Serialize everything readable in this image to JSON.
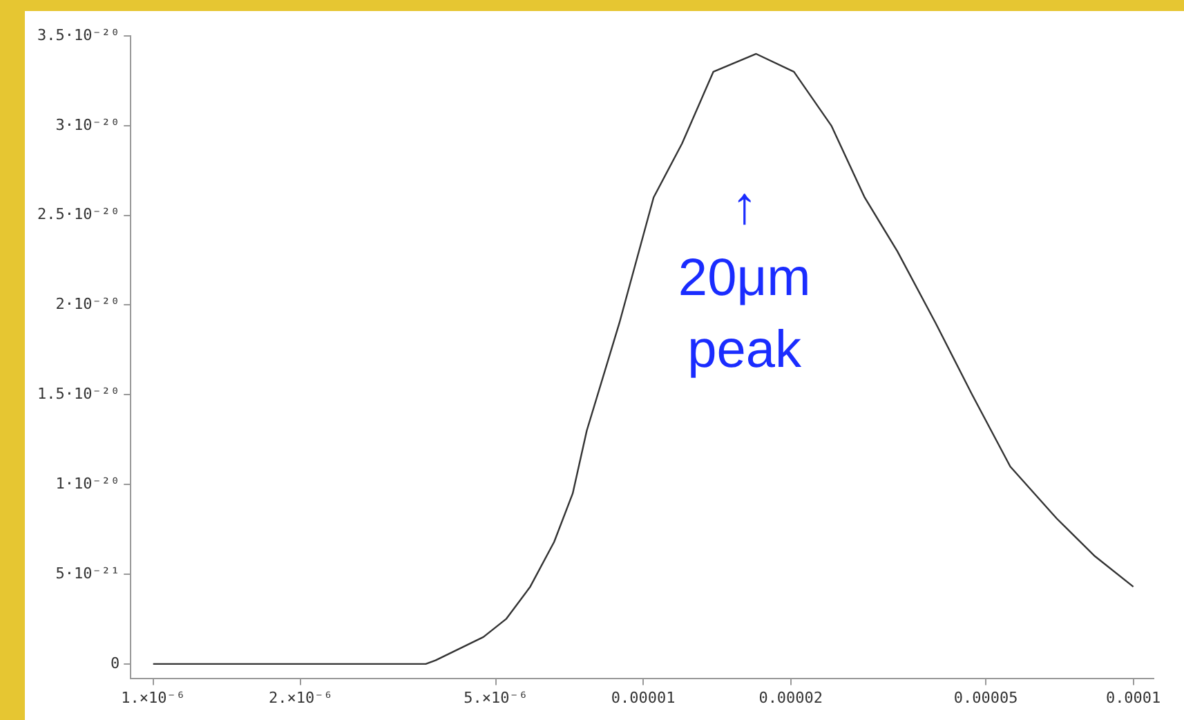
{
  "chart_data": {
    "type": "line",
    "log": "x",
    "grid": false,
    "marker": "none",
    "line_style": "solid",
    "x": [
      1e-06,
      2e-06,
      3e-06,
      3.6e-06,
      3.77e-06,
      4.72e-06,
      5.25e-06,
      5.88e-06,
      6.58e-06,
      7.18e-06,
      7.67e-06,
      8.94e-06,
      1.05e-05,
      1.2e-05,
      1.39e-05,
      1.7e-05,
      2.03e-05,
      2.42e-05,
      2.83e-05,
      3.3e-05,
      3.95e-05,
      4.69e-05,
      5.61e-05,
      6.98e-05,
      8.35e-05,
      0.0001
    ],
    "series": [
      {
        "color": "#333333",
        "values": [
          0,
          0,
          0,
          0,
          2e-22,
          1.5e-21,
          2.5e-21,
          4.3e-21,
          6.8e-21,
          9.5e-21,
          1.3e-20,
          1.9e-20,
          2.6e-20,
          2.9e-20,
          3.3e-20,
          3.4e-20,
          3.3e-20,
          3e-20,
          2.6e-20,
          2.3e-20,
          1.9e-20,
          1.5e-20,
          1.1e-20,
          8.1e-21,
          6e-21,
          4.3e-21
        ]
      }
    ],
    "xlim": [
      9e-07,
      0.00011
    ],
    "xticks": [
      {
        "value": 1e-06,
        "label": "1.×10⁻⁶"
      },
      {
        "value": 2e-06,
        "label": "2.×10⁻⁶"
      },
      {
        "value": 5e-06,
        "label": "5.×10⁻⁶"
      },
      {
        "value": 1e-05,
        "label": "0.00001"
      },
      {
        "value": 2e-05,
        "label": "0.00002"
      },
      {
        "value": 5e-05,
        "label": "0.00005"
      },
      0.0001
    ],
    "ylim": [
      -8e-22,
      3.5e-20
    ],
    "yticks": [
      0,
      {
        "value": 5e-21,
        "label": "5·10⁻²¹"
      },
      {
        "value": 1e-20,
        "label": "1·10⁻²⁰"
      },
      {
        "value": 1.5e-20,
        "label": "1.5·10⁻²⁰"
      },
      {
        "value": 2e-20,
        "label": "2·10⁻²⁰"
      },
      {
        "value": 2.5e-20,
        "label": "2.5·10⁻²⁰"
      },
      {
        "value": 3e-20,
        "label": "3·10⁻²⁰"
      },
      {
        "value": 3.5e-20,
        "label": "3.5·10⁻²⁰"
      }
    ],
    "annotations": [
      "↑\n20μm\npeak"
    ]
  }
}
